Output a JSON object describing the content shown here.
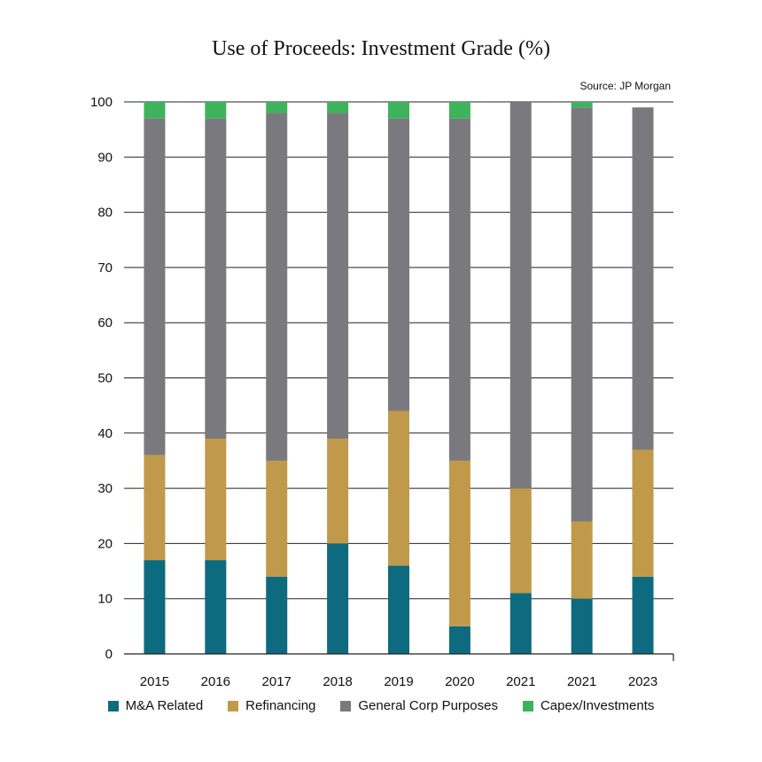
{
  "source_note": "Source: JP Morgan",
  "chart_data": {
    "type": "bar",
    "stacked": true,
    "title": "Use of Proceeds: Investment Grade (%)",
    "xlabel": "",
    "ylabel": "",
    "ylim": [
      0,
      100
    ],
    "yticks": [
      0,
      10,
      20,
      30,
      40,
      50,
      60,
      70,
      80,
      90,
      100
    ],
    "grid": true,
    "legend_position": "bottom",
    "categories": [
      "2015",
      "2016",
      "2017",
      "2018",
      "2019",
      "2020",
      "2021",
      "2021",
      "2023"
    ],
    "series": [
      {
        "name": "M&A Related",
        "color": "#0e6a7e",
        "values": [
          17,
          17,
          14,
          20,
          16,
          5,
          11,
          10,
          14
        ]
      },
      {
        "name": "Refinancing",
        "color": "#c09a4a",
        "values": [
          19,
          22,
          21,
          19,
          28,
          30,
          19,
          14,
          23
        ]
      },
      {
        "name": "General Corp Purposes",
        "color": "#7a7a7e",
        "values": [
          61,
          58,
          63,
          59,
          53,
          62,
          70,
          75,
          62
        ]
      },
      {
        "name": "Capex/Investments",
        "color": "#3fb35c",
        "values": [
          3,
          3,
          2,
          2,
          3,
          3,
          0,
          1,
          0
        ]
      }
    ]
  }
}
